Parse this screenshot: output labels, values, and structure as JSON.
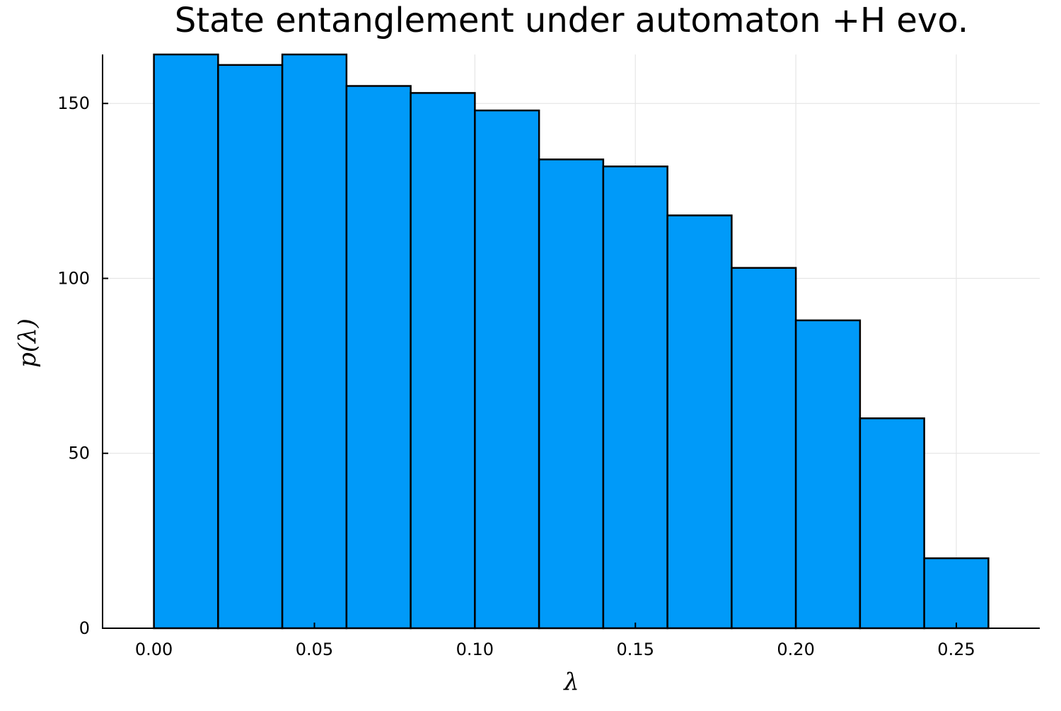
{
  "chart_data": {
    "type": "bar",
    "title": "State entanglement under automaton +H evo.",
    "xlabel": "λ",
    "ylabel": "p(λ)",
    "bin_edges": [
      0.0,
      0.02,
      0.04,
      0.06,
      0.08,
      0.1,
      0.12,
      0.14,
      0.16,
      0.18,
      0.2,
      0.22,
      0.24,
      0.26
    ],
    "values": [
      164,
      161,
      164,
      155,
      153,
      148,
      134,
      132,
      118,
      103,
      88,
      60,
      20
    ],
    "xlim": [
      -0.016,
      0.276
    ],
    "ylim": [
      0,
      164
    ],
    "xticks": [
      0.0,
      0.05,
      0.1,
      0.15,
      0.2,
      0.25
    ],
    "xtick_labels": [
      "0.00",
      "0.05",
      "0.10",
      "0.15",
      "0.20",
      "0.25"
    ],
    "yticks": [
      0,
      50,
      100,
      150
    ],
    "ytick_labels": [
      "0",
      "50",
      "100",
      "150"
    ],
    "grid": true,
    "legend": "none",
    "bar_color": "#009af9",
    "edge_color": "#000000"
  }
}
